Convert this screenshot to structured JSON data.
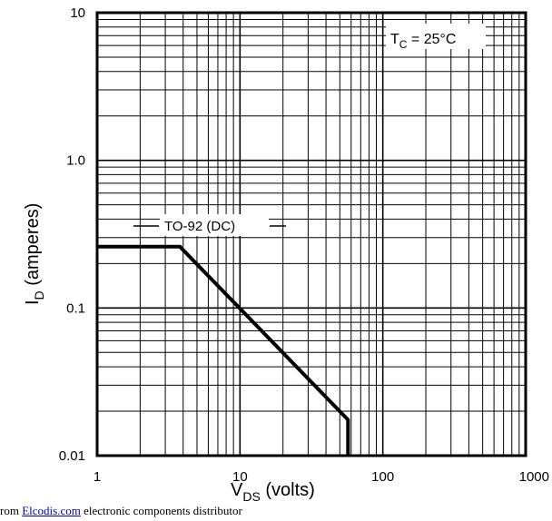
{
  "chart_data": {
    "type": "line",
    "title": "",
    "xscale": "log",
    "yscale": "log",
    "xlim": [
      1,
      1000
    ],
    "ylim": [
      0.01,
      10
    ],
    "x_tick_labels": [
      "1",
      "10",
      "100",
      "1000"
    ],
    "y_tick_labels": [
      "10",
      "1.0",
      "0.1",
      "0.01"
    ],
    "xlabel": {
      "prefix": "V",
      "sub": "DS",
      "suffix": " (volts)"
    },
    "ylabel": {
      "prefix": "I",
      "sub": "D",
      "suffix": " (amperes)"
    },
    "grid": true,
    "annotations": [
      {
        "id": "tc",
        "prefix": "T",
        "sub": "C",
        "suffix": " = 25°C"
      },
      {
        "id": "series",
        "text": "TO-92 (DC)"
      }
    ],
    "series": [
      {
        "name": "TO-92 (DC)",
        "x": [
          1,
          3.8,
          57,
          57
        ],
        "y": [
          0.26,
          0.26,
          0.0175,
          0.01
        ]
      }
    ]
  },
  "footer": {
    "text_before": "rom ",
    "link_text": "Elcodis.com",
    "text_after": "  electronic components distributor"
  }
}
